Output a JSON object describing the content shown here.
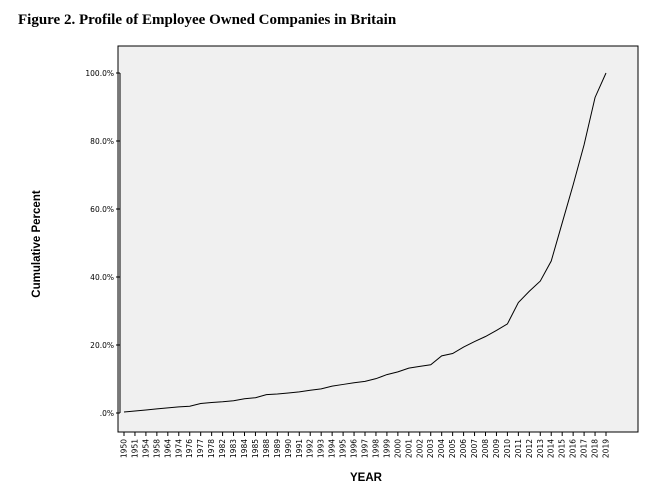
{
  "figure_title": "Figure 2. Profile of Employee Owned Companies in Britain",
  "chart_data": {
    "type": "line",
    "xlabel": "YEAR",
    "ylabel": "Cumulative Percent",
    "ylim": [
      0,
      100
    ],
    "y_ticks": [
      ".0%",
      "20.0%",
      "40.0%",
      "60.0%",
      "80.0%",
      "100.0%"
    ],
    "grid": false,
    "categories": [
      "1950",
      "1951",
      "1954",
      "1958",
      "1964",
      "1974",
      "1976",
      "1977",
      "1978",
      "1982",
      "1983",
      "1984",
      "1985",
      "1988",
      "1989",
      "1990",
      "1991",
      "1992",
      "1993",
      "1994",
      "1995",
      "1996",
      "1997",
      "1998",
      "1999",
      "2000",
      "2001",
      "2002",
      "2003",
      "2004",
      "2005",
      "2006",
      "2007",
      "2008",
      "2009",
      "2010",
      "2011",
      "2012",
      "2013",
      "2014",
      "2015",
      "2016",
      "2017",
      "2018",
      "2019"
    ],
    "values": [
      0.3,
      0.6,
      0.9,
      1.2,
      1.5,
      1.8,
      2.0,
      2.8,
      3.1,
      3.3,
      3.6,
      4.2,
      4.5,
      5.4,
      5.6,
      5.9,
      6.2,
      6.7,
      7.1,
      7.9,
      8.4,
      8.9,
      9.3,
      10.1,
      11.3,
      12.1,
      13.2,
      13.7,
      14.2,
      16.8,
      17.5,
      19.4,
      21.0,
      22.5,
      24.3,
      26.2,
      32.5,
      35.8,
      38.8,
      44.7,
      55.9,
      67.1,
      78.9,
      92.8,
      100.0
    ]
  }
}
